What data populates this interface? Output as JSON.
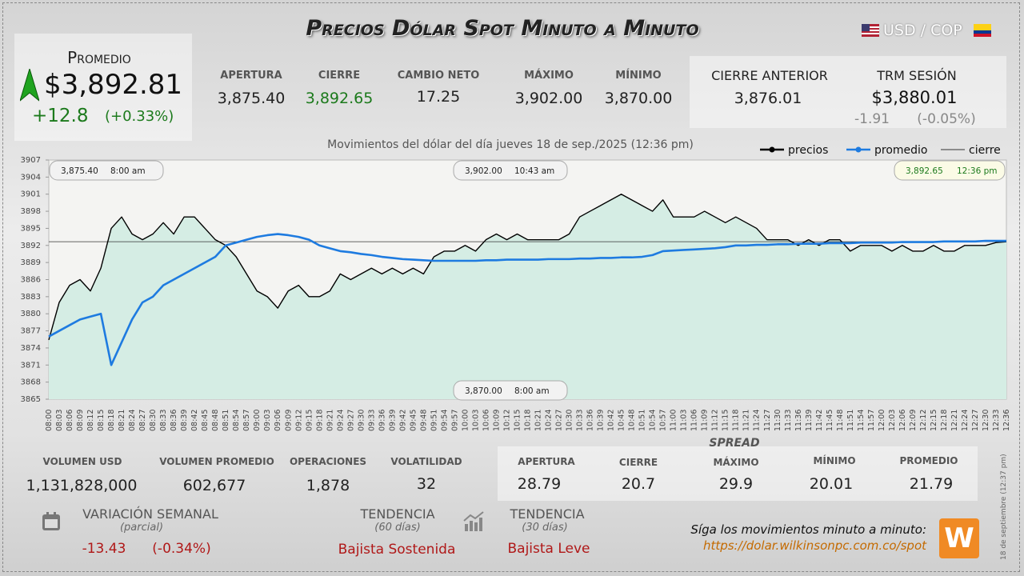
{
  "header": {
    "title": "Precios Dólar Spot Minuto a Minuto",
    "pair": "USD / COP"
  },
  "promedio": {
    "label": "Promedio",
    "value": "$3,892.81",
    "change": "+12.8",
    "change_pct": "(+0.33%)"
  },
  "stats": [
    {
      "label": "APERTURA",
      "value": "3,875.40"
    },
    {
      "label": "CIERRE",
      "value": "3,892.65"
    },
    {
      "label": "CAMBIO NETO",
      "value": "17.25"
    },
    {
      "label": "MÁXIMO",
      "value": "3,902.00"
    },
    {
      "label": "MÍNIMO",
      "value": "3,870.00"
    }
  ],
  "previous_close": {
    "label": "CIERRE ANTERIOR",
    "value": "3,876.01"
  },
  "trm": {
    "label": "TRM SESIÓN",
    "value": "$3,880.01",
    "change": "-1.91",
    "change_pct": "(-0.05%)"
  },
  "chart_data": {
    "type": "line",
    "subtitle": "Movimientos del dólar del día jueves 18 de sep./2025 (12:36 pm)",
    "categories": [
      "08:00",
      "08:03",
      "08:06",
      "08:09",
      "08:12",
      "08:15",
      "08:18",
      "08:21",
      "08:24",
      "08:27",
      "08:30",
      "08:33",
      "08:36",
      "08:39",
      "08:42",
      "08:45",
      "08:48",
      "08:51",
      "08:54",
      "08:57",
      "09:00",
      "09:03",
      "09:06",
      "09:09",
      "09:12",
      "09:15",
      "09:18",
      "09:21",
      "09:24",
      "09:27",
      "09:30",
      "09:33",
      "09:36",
      "09:39",
      "09:42",
      "09:45",
      "09:48",
      "09:51",
      "09:54",
      "09:57",
      "10:00",
      "10:03",
      "10:06",
      "10:09",
      "10:12",
      "10:15",
      "10:18",
      "10:21",
      "10:24",
      "10:27",
      "10:30",
      "10:33",
      "10:36",
      "10:39",
      "10:42",
      "10:45",
      "10:48",
      "10:51",
      "10:54",
      "10:57",
      "11:00",
      "11:03",
      "11:06",
      "11:09",
      "11:12",
      "11:15",
      "11:18",
      "11:21",
      "11:24",
      "11:27",
      "11:30",
      "11:33",
      "11:36",
      "11:39",
      "11:42",
      "11:45",
      "11:48",
      "11:51",
      "11:54",
      "11:57",
      "12:00",
      "12:03",
      "12:06",
      "12:09",
      "12:12",
      "12:15",
      "12:18",
      "12:21",
      "12:24",
      "12:27",
      "12:30",
      "12:33",
      "12:36"
    ],
    "series": [
      {
        "name": "precios",
        "color": "#000000",
        "values": [
          3875.4,
          3882,
          3885,
          3886,
          3884,
          3888,
          3895,
          3897,
          3894,
          3893,
          3894,
          3896,
          3894,
          3897,
          3897,
          3895,
          3893,
          3892,
          3890,
          3887,
          3884,
          3883,
          3881,
          3884,
          3885,
          3883,
          3883,
          3884,
          3887,
          3886,
          3887,
          3888,
          3887,
          3888,
          3887,
          3888,
          3887,
          3890,
          3891,
          3891,
          3892,
          3891,
          3893,
          3894,
          3893,
          3894,
          3893,
          3893,
          3893,
          3893,
          3894,
          3897,
          3898,
          3899,
          3900,
          3901,
          3900,
          3899,
          3898,
          3900,
          3897,
          3897,
          3897,
          3898,
          3897,
          3896,
          3897,
          3896,
          3895,
          3893,
          3893,
          3893,
          3892,
          3893,
          3892,
          3893,
          3893,
          3891,
          3892,
          3892,
          3892,
          3891,
          3892,
          3891,
          3891,
          3892,
          3891,
          3891,
          3892,
          3892,
          3892,
          3892.5,
          3892.65
        ]
      },
      {
        "name": "promedio",
        "color": "#1e7be0",
        "values": [
          3876,
          3877,
          3878,
          3879,
          3879.5,
          3880,
          3871,
          3875,
          3879,
          3882,
          3883,
          3885,
          3886,
          3887,
          3888,
          3889,
          3890,
          3892,
          3892.5,
          3893,
          3893.5,
          3893.8,
          3894,
          3893.8,
          3893.5,
          3893,
          3892,
          3891.5,
          3891,
          3890.8,
          3890.5,
          3890.3,
          3890,
          3889.8,
          3889.6,
          3889.5,
          3889.4,
          3889.3,
          3889.3,
          3889.3,
          3889.3,
          3889.3,
          3889.4,
          3889.4,
          3889.5,
          3889.5,
          3889.5,
          3889.5,
          3889.6,
          3889.6,
          3889.6,
          3889.7,
          3889.7,
          3889.8,
          3889.8,
          3889.9,
          3889.9,
          3890,
          3890.3,
          3891,
          3891.1,
          3891.2,
          3891.3,
          3891.4,
          3891.5,
          3891.7,
          3892,
          3892,
          3892.1,
          3892.1,
          3892.2,
          3892.2,
          3892.3,
          3892.3,
          3892.3,
          3892.4,
          3892.4,
          3892.4,
          3892.5,
          3892.5,
          3892.5,
          3892.5,
          3892.6,
          3892.6,
          3892.6,
          3892.6,
          3892.7,
          3892.7,
          3892.7,
          3892.7,
          3892.8,
          3892.8,
          3892.81
        ]
      }
    ],
    "reference_line": {
      "name": "cierre",
      "value": 3892.65,
      "color": "#333333"
    },
    "area_color": "#d5ede4",
    "ylim": [
      3865,
      3907
    ],
    "yticks": [
      3865,
      3868,
      3871,
      3874,
      3877,
      3880,
      3883,
      3886,
      3889,
      3892,
      3895,
      3898,
      3901,
      3904,
      3907
    ],
    "legend": "top-right",
    "annotations": [
      {
        "value": "3,875.40",
        "time": "8:00 am"
      },
      {
        "value": "3,902.00",
        "time": "10:43 am"
      },
      {
        "value": "3,892.65",
        "time": "12:36 pm"
      },
      {
        "value": "3,870.00",
        "time": "8:00 am"
      }
    ]
  },
  "volume_stats": [
    {
      "label": "VOLUMEN USD",
      "value": "1,131,828,000"
    },
    {
      "label": "VOLUMEN PROMEDIO",
      "value": "602,677"
    },
    {
      "label": "OPERACIONES",
      "value": "1,878"
    },
    {
      "label": "VOLATILIDAD",
      "value": "32"
    }
  ],
  "spread": {
    "title": "SPREAD",
    "items": [
      {
        "label": "APERTURA",
        "value": "28.79"
      },
      {
        "label": "CIERRE",
        "value": "20.7"
      },
      {
        "label": "MÁXIMO",
        "value": "29.9"
      },
      {
        "label": "MÍNIMO",
        "value": "20.01"
      },
      {
        "label": "PROMEDIO",
        "value": "21.79"
      }
    ]
  },
  "weekly": {
    "label": "VARIACIÓN SEMANAL",
    "note": "(parcial)",
    "change": "-13.43",
    "change_pct": "(-0.34%)"
  },
  "trends": [
    {
      "label": "TENDENCIA",
      "note": "(60 días)",
      "value": "Bajista Sostenida"
    },
    {
      "label": "TENDENCIA",
      "note": "(30 días)",
      "value": "Bajista Leve"
    }
  ],
  "footer": {
    "cta": "Síga los movimientos minuto a minuto:",
    "url": "https://dolar.wilkinsonpc.com.co/spot",
    "stamp": "18 de septiembre (12:37 pm)",
    "logo": "W"
  }
}
